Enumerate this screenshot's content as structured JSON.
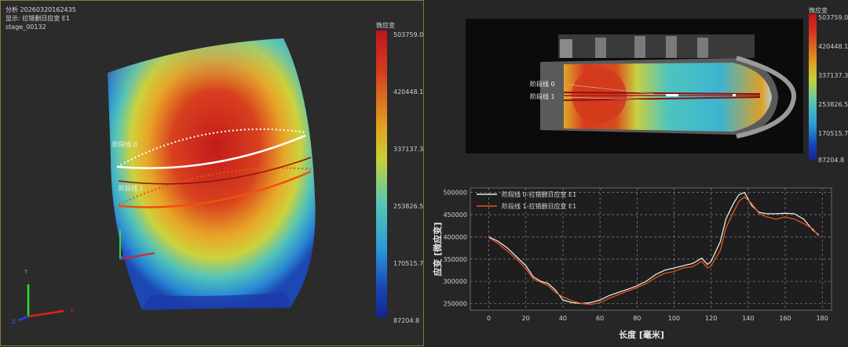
{
  "left": {
    "info_lines": [
      "分析 20260320162435",
      "显示: 拉错删日应变 E1",
      "stage_00132"
    ],
    "scale": {
      "title": "微应变",
      "ticks": [
        "503759.0",
        "420448.1",
        "337137.3",
        "253826.5",
        "170515.7",
        "87204.8"
      ]
    },
    "stage_lines": [
      "阶段线 0",
      "阶段线 1"
    ]
  },
  "right": {
    "scale": {
      "title": "微应变",
      "ticks": [
        "503759.0",
        "420448.1",
        "337137.3",
        "253826.5",
        "170515.7",
        "87204.8"
      ]
    },
    "stage_lines": [
      "阶段线 0",
      "阶段线 1"
    ]
  },
  "chart_data": {
    "type": "line",
    "xlabel": "长度 [毫米]",
    "ylabel": "应变 [微应变]",
    "xlim": [
      -10,
      185
    ],
    "ylim": [
      235000,
      510000
    ],
    "xticks": [
      0,
      20,
      40,
      60,
      80,
      100,
      120,
      140,
      160,
      180
    ],
    "yticks": [
      250000,
      300000,
      350000,
      400000,
      450000,
      500000
    ],
    "grid": true,
    "legend_position": "top-left",
    "series": [
      {
        "name": "阶段线 0-拉错删日应变 E1",
        "color": "#e8e8e8",
        "x": [
          0,
          5,
          10,
          15,
          20,
          24,
          28,
          32,
          36,
          40,
          45,
          50,
          55,
          60,
          65,
          70,
          75,
          80,
          85,
          90,
          95,
          100,
          105,
          110,
          115,
          118,
          120,
          125,
          128,
          132,
          135,
          138,
          142,
          146,
          150,
          155,
          160,
          165,
          170,
          175,
          178
        ],
        "y": [
          400000,
          390000,
          375000,
          355000,
          335000,
          310000,
          300000,
          295000,
          280000,
          258000,
          252000,
          250000,
          252000,
          258000,
          268000,
          275000,
          282000,
          290000,
          300000,
          315000,
          325000,
          330000,
          335000,
          340000,
          352000,
          338000,
          345000,
          390000,
          440000,
          475000,
          495000,
          500000,
          470000,
          455000,
          452000,
          452000,
          453000,
          452000,
          440000,
          415000,
          405000
        ]
      },
      {
        "name": "阶段线 1-拉错删日应变 E1",
        "color": "#e0561c",
        "x": [
          0,
          5,
          10,
          15,
          20,
          24,
          28,
          32,
          36,
          40,
          45,
          50,
          55,
          60,
          65,
          70,
          75,
          80,
          85,
          90,
          95,
          100,
          105,
          110,
          115,
          118,
          120,
          125,
          128,
          132,
          135,
          138,
          142,
          146,
          150,
          155,
          160,
          165,
          170,
          175,
          178
        ],
        "y": [
          398000,
          385000,
          368000,
          350000,
          328000,
          305000,
          298000,
          290000,
          275000,
          265000,
          256000,
          250000,
          248000,
          252000,
          262000,
          270000,
          278000,
          286000,
          295000,
          308000,
          318000,
          322000,
          330000,
          333000,
          345000,
          330000,
          335000,
          370000,
          420000,
          455000,
          480000,
          490000,
          475000,
          452000,
          445000,
          440000,
          445000,
          440000,
          430000,
          418000,
          402000
        ]
      }
    ]
  }
}
